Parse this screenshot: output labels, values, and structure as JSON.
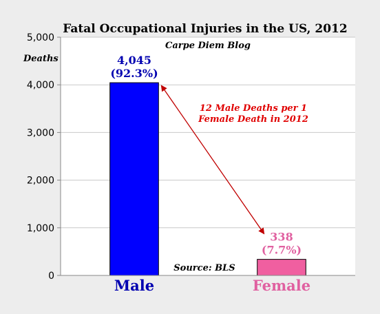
{
  "chart_data": {
    "type": "bar",
    "title": "Fatal Occupational Injuries in the US, 2012",
    "ylabel": "Deaths",
    "xlabel": "",
    "ylim": [
      0,
      5000
    ],
    "yticks": [
      0,
      1000,
      2000,
      3000,
      4000,
      5000
    ],
    "ytick_labels": [
      "0",
      "1,000",
      "2,000",
      "3,000",
      "4,000",
      "5,000"
    ],
    "grid": true,
    "categories": [
      "Male",
      "Female"
    ],
    "values": [
      4045,
      338
    ],
    "value_labels": [
      [
        "4,045",
        "(92.3%)"
      ],
      [
        "338",
        "(7.7%)"
      ]
    ],
    "colors": [
      "#0000ff",
      "#f05fa0"
    ],
    "label_colors": [
      "#0000b0",
      "#e060a0"
    ],
    "category_colors": [
      "#0000b0",
      "#e060a0"
    ],
    "annotations": {
      "blog": "Carpe Diem Blog",
      "source": "Source: BLS",
      "ratio_lines": [
        "12 Male Deaths per 1",
        "Female Death in 2012"
      ]
    },
    "arrow_color": "#c00000"
  }
}
